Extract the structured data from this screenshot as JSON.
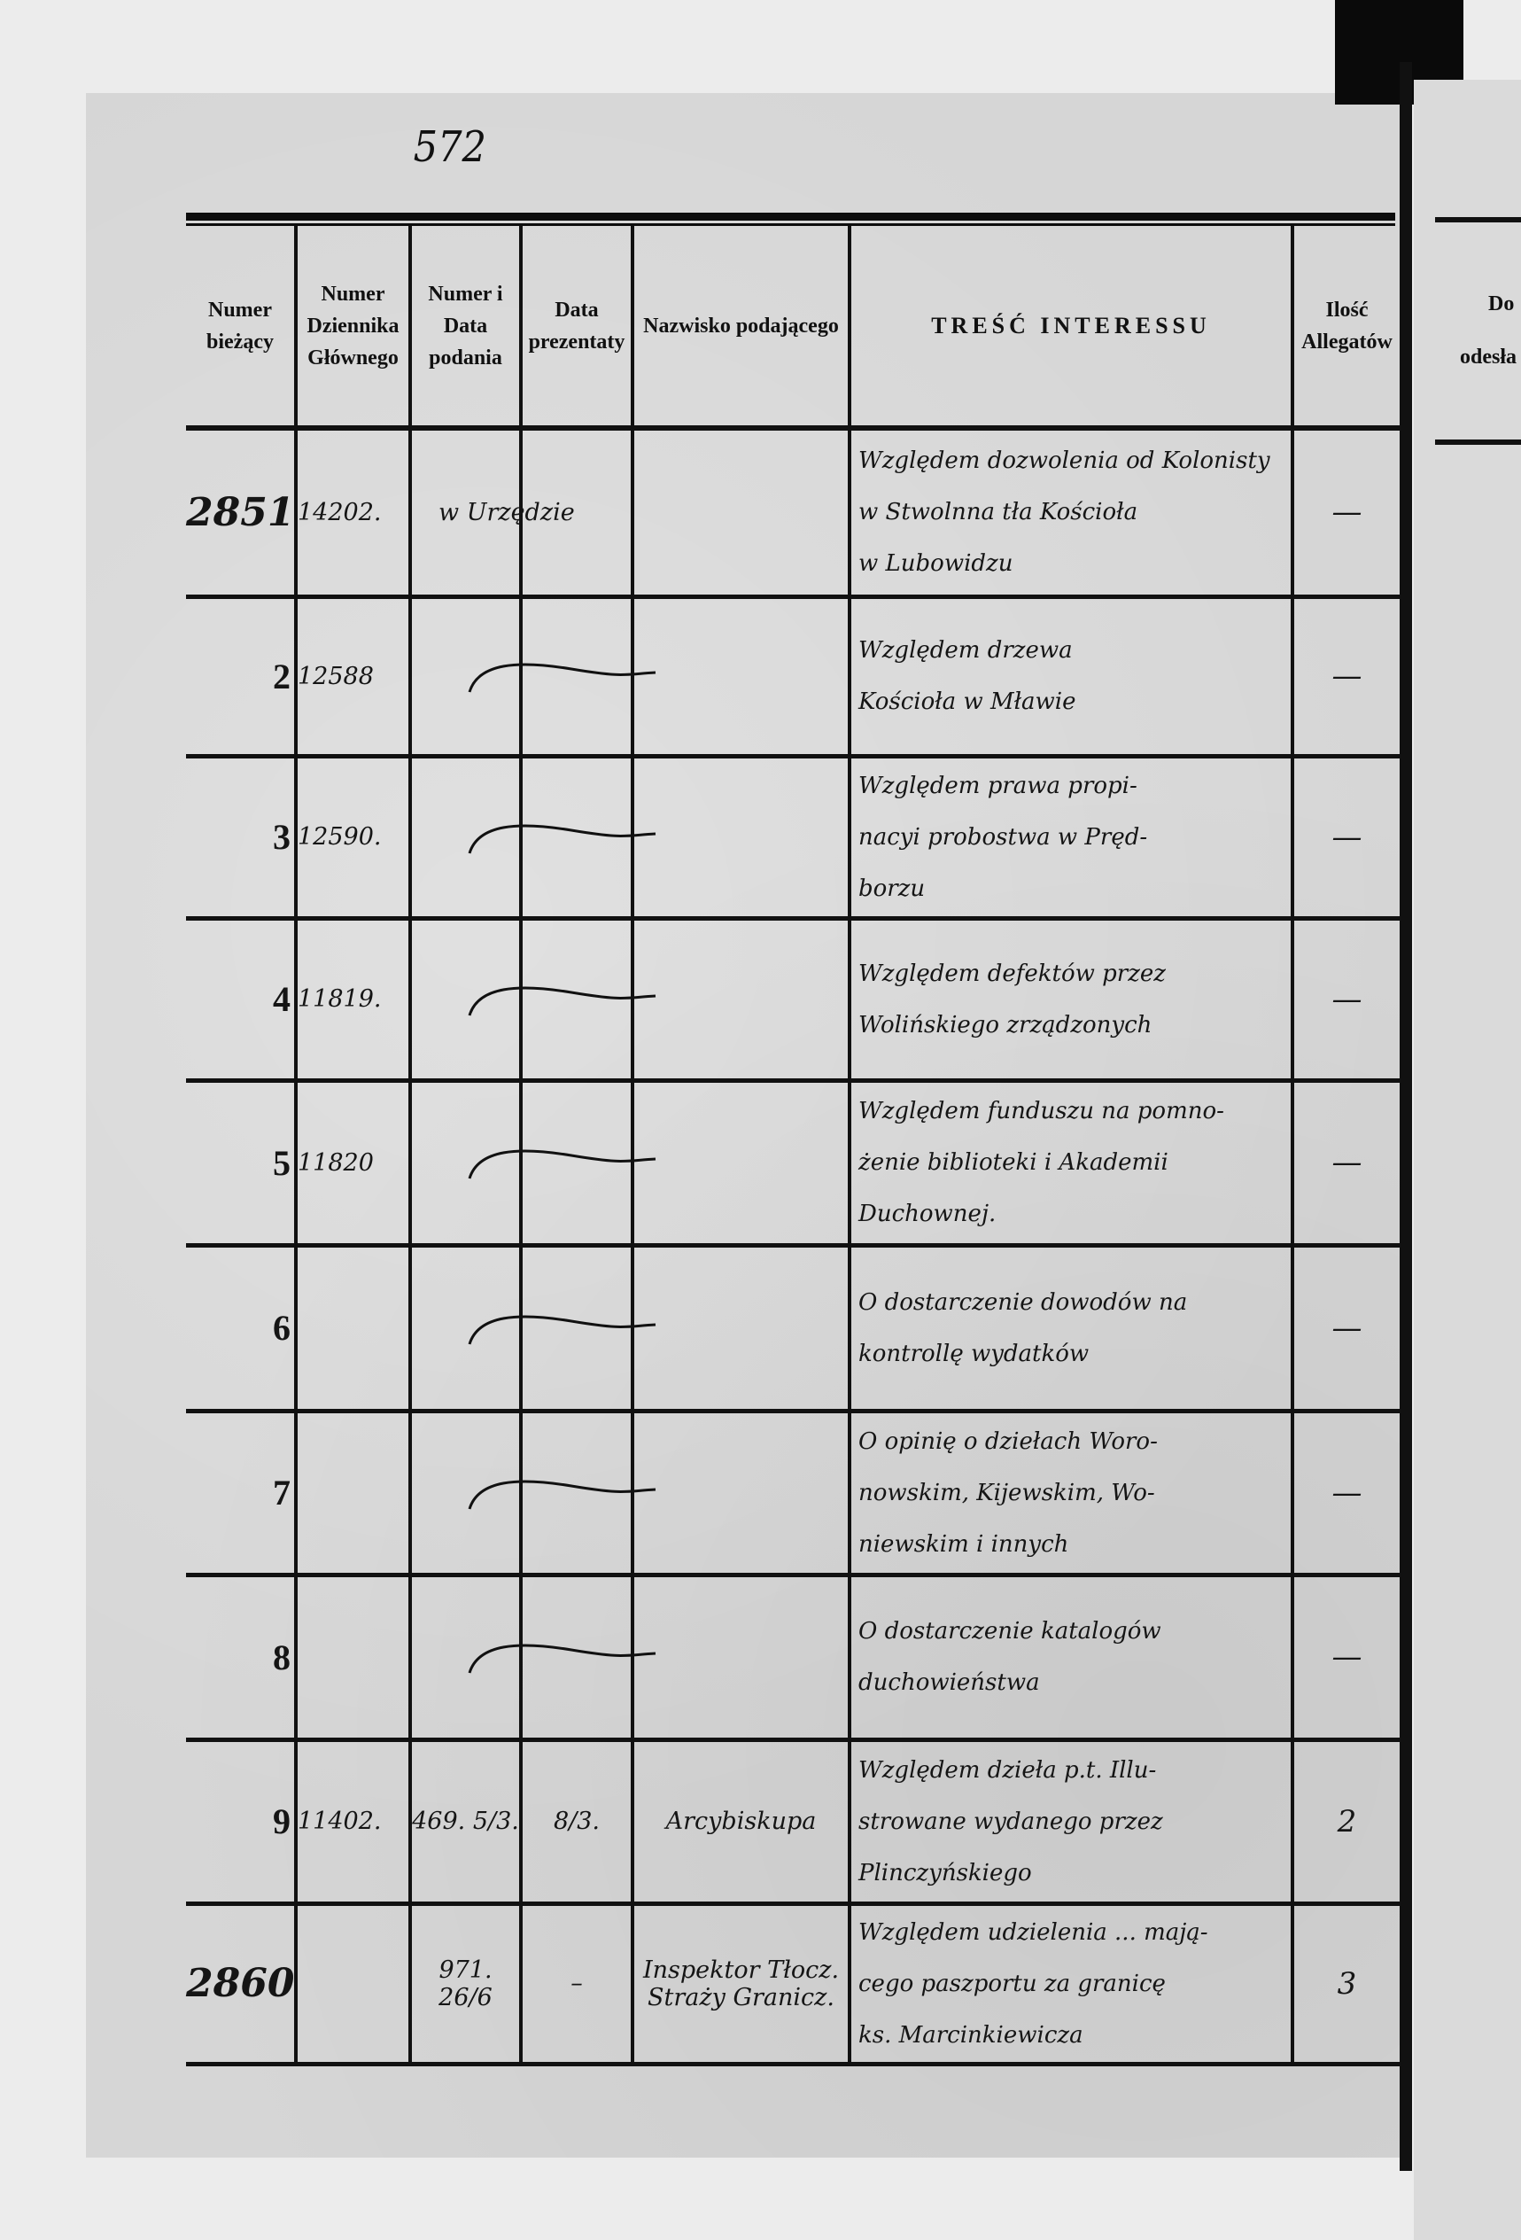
{
  "page_number": "572",
  "headers": [
    "Numer bieżący",
    "Numer Dziennika Głównego",
    "Numer i Data podania",
    "Data prezentaty",
    "Nazwisko podającego",
    "TREŚĆ INTERESSU",
    "Ilość Allegatów"
  ],
  "right_page_header": [
    "Do",
    "odesła"
  ],
  "rows": [
    {
      "numer": "2851",
      "dziennik": "14202.",
      "numer_data": "w Urzędzie",
      "prezentaty": "",
      "nazwisko": "",
      "tresc": [
        "Względem dozwolenia od Kolonisty",
        "w Stwolnna tła Kościoła",
        "w Lubowidzu"
      ],
      "ilosc": "—",
      "ditto": false
    },
    {
      "numer": "2",
      "dziennik": "12588",
      "numer_data": "",
      "prezentaty": "",
      "nazwisko": "",
      "tresc": [
        "Względem drzewa",
        "Kościoła w Mławie"
      ],
      "ilosc": "—",
      "ditto": true
    },
    {
      "numer": "3",
      "dziennik": "12590.",
      "numer_data": "",
      "prezentaty": "",
      "nazwisko": "",
      "tresc": [
        "Względem prawa propi-",
        "nacyi probostwa w Pręd-",
        "borzu"
      ],
      "ilosc": "—",
      "ditto": true
    },
    {
      "numer": "4",
      "dziennik": "11819.",
      "numer_data": "",
      "prezentaty": "",
      "nazwisko": "",
      "tresc": [
        "Względem defektów przez",
        "Wolińskiego zrządzonych"
      ],
      "ilosc": "—",
      "ditto": true
    },
    {
      "numer": "5",
      "dziennik": "11820",
      "numer_data": "",
      "prezentaty": "",
      "nazwisko": "",
      "tresc": [
        "Względem funduszu na pomno-",
        "żenie biblioteki i Akademii",
        "Duchownej."
      ],
      "ilosc": "—",
      "ditto": true
    },
    {
      "numer": "6",
      "dziennik": "",
      "numer_data": "",
      "prezentaty": "",
      "nazwisko": "",
      "tresc": [
        "O dostarczenie dowodów na",
        "kontrollę wydatków"
      ],
      "ilosc": "—",
      "ditto": true
    },
    {
      "numer": "7",
      "dziennik": "",
      "numer_data": "",
      "prezentaty": "",
      "nazwisko": "",
      "tresc": [
        "O opinię o dziełach Woro-",
        "nowskim, Kijewskim, Wo-",
        "niewskim i innych"
      ],
      "ilosc": "—",
      "ditto": true
    },
    {
      "numer": "8",
      "dziennik": "",
      "numer_data": "",
      "prezentaty": "",
      "nazwisko": "",
      "tresc": [
        "O dostarczenie katalogów",
        "duchowieństwa"
      ],
      "ilosc": "—",
      "ditto": true
    },
    {
      "numer": "9",
      "dziennik": "11402.",
      "numer_data": "469. 5/3.",
      "prezentaty": "8/3.",
      "nazwisko": "Arcybiskupa",
      "tresc": [
        "Względem dzieła p.t. Illu-",
        "strowane wydanego przez",
        "Plinczyńskiego"
      ],
      "ilosc": "2",
      "ditto": false
    },
    {
      "numer": "2860",
      "dziennik": "",
      "numer_data": "971. 26/6",
      "prezentaty": "–",
      "nazwisko": "Inspektor Tłocz. Straży Granicz.",
      "tresc": [
        "Względem udzielenia ... mają-",
        "cego paszportu za granicę",
        "ks. Marcinkiewicza"
      ],
      "ilosc": "3",
      "ditto": false
    }
  ]
}
